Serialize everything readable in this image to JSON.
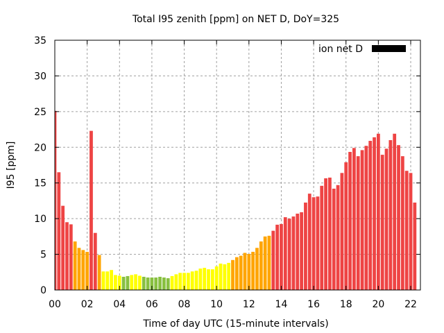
{
  "chart_data": {
    "type": "bar",
    "title": "Total I95 zenith [ppm] on NET D, DoY=325",
    "xlabel": "Time of day UTC (15-minute intervals)",
    "ylabel": "I95 [ppm]",
    "xlim": [
      0,
      22.6
    ],
    "ylim": [
      0,
      35
    ],
    "grid": true,
    "legend": {
      "position": "top-right",
      "entries": [
        {
          "label": "ion net D",
          "color": "#000000"
        }
      ]
    },
    "x_ticks": [
      {
        "value": 0,
        "label": "00"
      },
      {
        "value": 2,
        "label": "02"
      },
      {
        "value": 4,
        "label": "04"
      },
      {
        "value": 6,
        "label": "06"
      },
      {
        "value": 8,
        "label": "08"
      },
      {
        "value": 10,
        "label": "10"
      },
      {
        "value": 12,
        "label": "12"
      },
      {
        "value": 14,
        "label": "14"
      },
      {
        "value": 16,
        "label": "16"
      },
      {
        "value": 18,
        "label": "18"
      },
      {
        "value": 20,
        "label": "20"
      },
      {
        "value": 22,
        "label": "22"
      }
    ],
    "y_ticks": [
      {
        "value": 0,
        "label": "0"
      },
      {
        "value": 5,
        "label": "5"
      },
      {
        "value": 10,
        "label": "10"
      },
      {
        "value": 15,
        "label": "15"
      },
      {
        "value": 20,
        "label": "20"
      },
      {
        "value": 25,
        "label": "25"
      },
      {
        "value": 30,
        "label": "30"
      },
      {
        "value": 35,
        "label": "35"
      }
    ],
    "bar_step_hours": 0.25,
    "palette": {
      "red": "#ee4444",
      "orange": "#ffa500",
      "yellow": "#ffff00",
      "green": "#88c040"
    },
    "values": [
      25.1,
      16.5,
      11.8,
      9.5,
      9.2,
      6.8,
      5.9,
      5.6,
      5.35,
      22.3,
      8.0,
      4.9,
      2.6,
      2.6,
      2.8,
      2.1,
      2.0,
      1.85,
      1.95,
      2.1,
      2.2,
      2.0,
      1.85,
      1.75,
      1.75,
      1.75,
      1.85,
      1.75,
      1.65,
      1.95,
      2.2,
      2.4,
      2.4,
      2.4,
      2.6,
      2.7,
      3.0,
      3.1,
      2.9,
      2.9,
      3.3,
      3.7,
      3.6,
      3.8,
      4.2,
      4.6,
      4.8,
      5.2,
      5.05,
      5.35,
      5.9,
      6.8,
      7.5,
      7.6,
      8.3,
      9.15,
      9.25,
      10.2,
      10.0,
      10.3,
      10.7,
      10.9,
      12.25,
      13.5,
      13.0,
      13.1,
      14.6,
      15.65,
      15.75,
      14.2,
      14.7,
      16.4,
      17.9,
      19.35,
      19.9,
      18.75,
      19.6,
      20.2,
      20.9,
      21.4,
      21.9,
      18.95,
      19.8,
      21.0,
      21.9,
      20.3,
      18.75,
      16.7,
      16.4,
      12.25
    ],
    "colors": [
      "red",
      "red",
      "red",
      "red",
      "red",
      "orange",
      "orange",
      "orange",
      "orange",
      "red",
      "red",
      "orange",
      "yellow",
      "yellow",
      "yellow",
      "yellow",
      "yellow",
      "green",
      "green",
      "yellow",
      "yellow",
      "yellow",
      "green",
      "green",
      "green",
      "green",
      "green",
      "green",
      "green",
      "yellow",
      "yellow",
      "yellow",
      "yellow",
      "yellow",
      "yellow",
      "yellow",
      "yellow",
      "yellow",
      "yellow",
      "yellow",
      "yellow",
      "yellow",
      "yellow",
      "yellow",
      "orange",
      "orange",
      "orange",
      "orange",
      "orange",
      "orange",
      "orange",
      "orange",
      "orange",
      "orange",
      "red",
      "red",
      "red",
      "red",
      "red",
      "red",
      "red",
      "red",
      "red",
      "red",
      "red",
      "red",
      "red",
      "red",
      "red",
      "red",
      "red",
      "red",
      "red",
      "red",
      "red",
      "red",
      "red",
      "red",
      "red",
      "red",
      "red",
      "red",
      "red",
      "red",
      "red",
      "red",
      "red",
      "red",
      "red",
      "red"
    ]
  }
}
